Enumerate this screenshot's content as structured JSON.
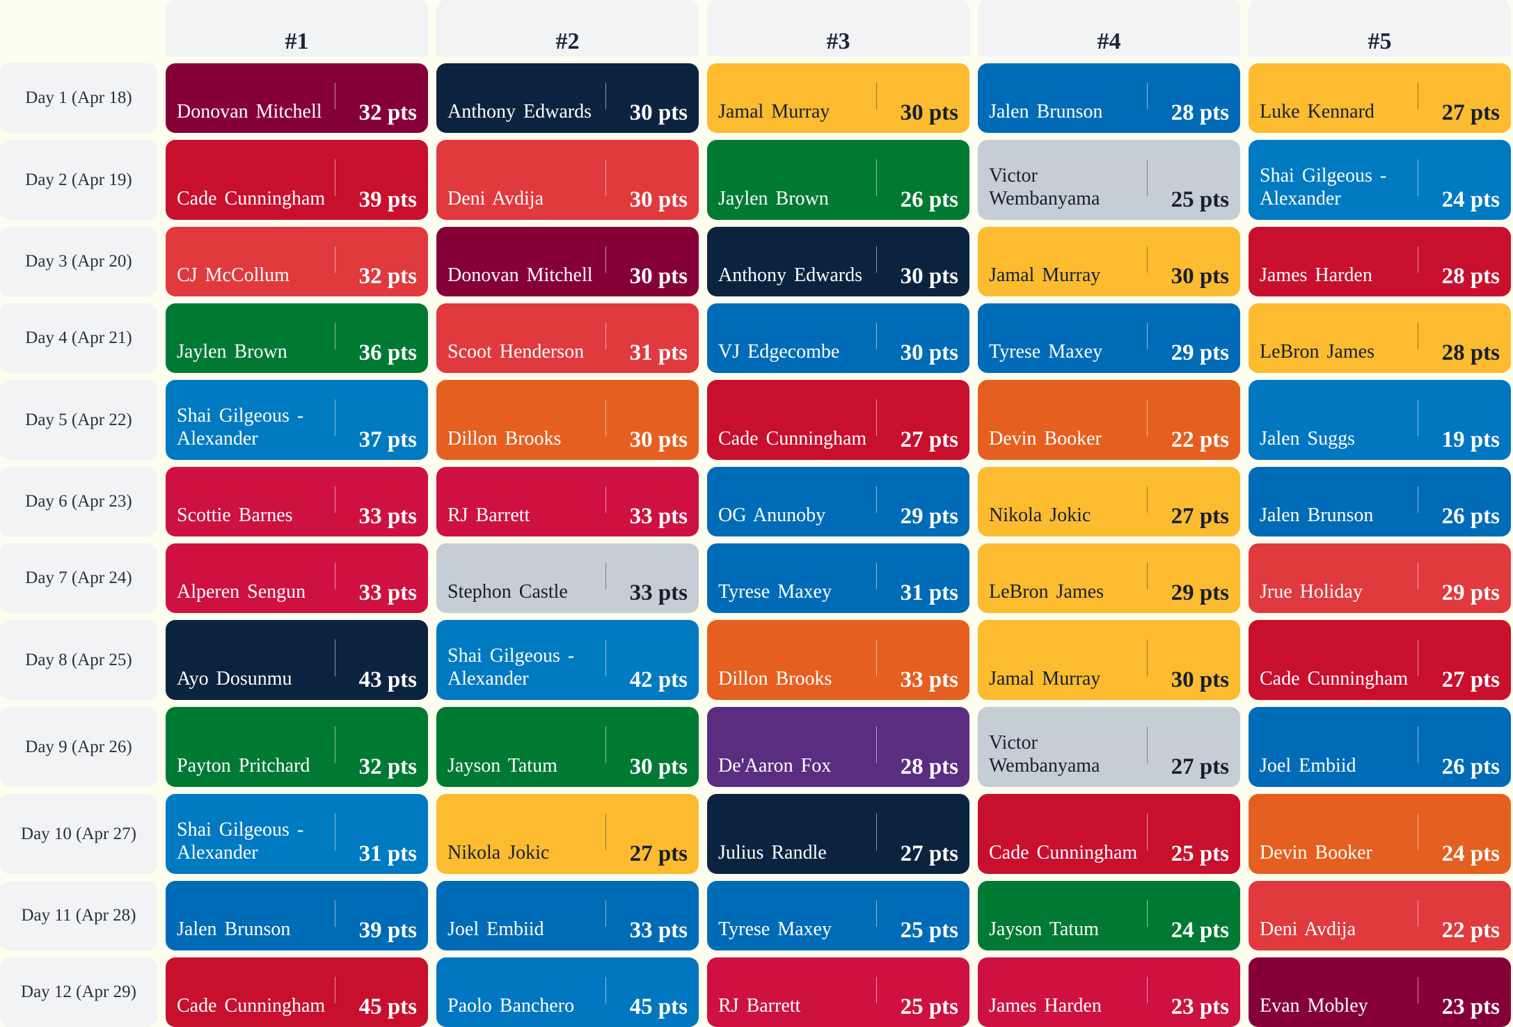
{
  "headers": [
    "#1",
    "#2",
    "#3",
    "#4",
    "#5"
  ],
  "colors": {
    "cavaliers_wine": "#860038",
    "navy": "#0c2340",
    "gold": "#fdbb30",
    "knicks_blue": "#006bb6",
    "red": "#c8102e",
    "hawks_red": "#e03a3e",
    "green": "#007a33",
    "silver": "#c4ced4",
    "thunder_blue": "#007ac1",
    "orange": "#e56020",
    "purple": "#5a2d81"
  },
  "rows": [
    {
      "day": "Day 1 (Apr 18)",
      "picks": [
        {
          "name": "Donovan Mitchell",
          "pts": "32 pts",
          "color": "#860038",
          "text": "light"
        },
        {
          "name": "Anthony Edwards",
          "pts": "30 pts",
          "color": "#0c2340",
          "text": "light"
        },
        {
          "name": "Jamal Murray",
          "pts": "30 pts",
          "color": "#fdbb30",
          "text": "dark"
        },
        {
          "name": "Jalen Brunson",
          "pts": "28 pts",
          "color": "#006bb6",
          "text": "light"
        },
        {
          "name": "Luke Kennard",
          "pts": "27 pts",
          "color": "#fdbb30",
          "text": "dark"
        }
      ]
    },
    {
      "day": "Day 2 (Apr 19)",
      "picks": [
        {
          "name": "Cade Cunningham",
          "pts": "39 pts",
          "color": "#c8102e",
          "text": "light"
        },
        {
          "name": "Deni Avdija",
          "pts": "30 pts",
          "color": "#e03a3e",
          "text": "light"
        },
        {
          "name": "Jaylen Brown",
          "pts": "26 pts",
          "color": "#007a33",
          "text": "light"
        },
        {
          "name": "Victor Wembanyama",
          "pts": "25 pts",
          "color": "#c4ced4",
          "text": "dark"
        },
        {
          "name": "Shai Gilgeous - Alexander",
          "pts": "24 pts",
          "color": "#007ac1",
          "text": "light"
        }
      ]
    },
    {
      "day": "Day 3 (Apr 20)",
      "picks": [
        {
          "name": "CJ McCollum",
          "pts": "32 pts",
          "color": "#e03a3e",
          "text": "light"
        },
        {
          "name": "Donovan Mitchell",
          "pts": "30 pts",
          "color": "#860038",
          "text": "light"
        },
        {
          "name": "Anthony Edwards",
          "pts": "30 pts",
          "color": "#0c2340",
          "text": "light"
        },
        {
          "name": "Jamal Murray",
          "pts": "30 pts",
          "color": "#fdbb30",
          "text": "dark"
        },
        {
          "name": "James Harden",
          "pts": "28 pts",
          "color": "#c8102e",
          "text": "light"
        }
      ]
    },
    {
      "day": "Day 4 (Apr 21)",
      "picks": [
        {
          "name": "Jaylen Brown",
          "pts": "36 pts",
          "color": "#007a33",
          "text": "light"
        },
        {
          "name": "Scoot Henderson",
          "pts": "31 pts",
          "color": "#e03a3e",
          "text": "light"
        },
        {
          "name": "VJ Edgecombe",
          "pts": "30 pts",
          "color": "#006bb6",
          "text": "light"
        },
        {
          "name": "Tyrese Maxey",
          "pts": "29 pts",
          "color": "#006bb6",
          "text": "light"
        },
        {
          "name": "LeBron James",
          "pts": "28 pts",
          "color": "#fdbb30",
          "text": "dark"
        }
      ]
    },
    {
      "day": "Day 5 (Apr 22)",
      "picks": [
        {
          "name": "Shai Gilgeous - Alexander",
          "pts": "37 pts",
          "color": "#007ac1",
          "text": "light"
        },
        {
          "name": "Dillon Brooks",
          "pts": "30 pts",
          "color": "#e56020",
          "text": "light"
        },
        {
          "name": "Cade Cunningham",
          "pts": "27 pts",
          "color": "#c8102e",
          "text": "light"
        },
        {
          "name": "Devin Booker",
          "pts": "22 pts",
          "color": "#e56020",
          "text": "light"
        },
        {
          "name": "Jalen Suggs",
          "pts": "19 pts",
          "color": "#0077c0",
          "text": "light"
        }
      ]
    },
    {
      "day": "Day 6 (Apr 23)",
      "picks": [
        {
          "name": "Scottie Barnes",
          "pts": "33 pts",
          "color": "#ce1141",
          "text": "light"
        },
        {
          "name": "RJ Barrett",
          "pts": "33 pts",
          "color": "#ce1141",
          "text": "light"
        },
        {
          "name": "OG Anunoby",
          "pts": "29 pts",
          "color": "#006bb6",
          "text": "light"
        },
        {
          "name": "Nikola Jokic",
          "pts": "27 pts",
          "color": "#fdbb30",
          "text": "dark"
        },
        {
          "name": "Jalen Brunson",
          "pts": "26 pts",
          "color": "#006bb6",
          "text": "light"
        }
      ]
    },
    {
      "day": "Day 7 (Apr 24)",
      "picks": [
        {
          "name": "Alperen Sengun",
          "pts": "33 pts",
          "color": "#ce1141",
          "text": "light"
        },
        {
          "name": "Stephon Castle",
          "pts": "33 pts",
          "color": "#c4ced4",
          "text": "dark"
        },
        {
          "name": "Tyrese Maxey",
          "pts": "31 pts",
          "color": "#006bb6",
          "text": "light"
        },
        {
          "name": "LeBron James",
          "pts": "29 pts",
          "color": "#fdbb30",
          "text": "dark"
        },
        {
          "name": "Jrue Holiday",
          "pts": "29 pts",
          "color": "#e03a3e",
          "text": "light"
        }
      ]
    },
    {
      "day": "Day 8 (Apr 25)",
      "picks": [
        {
          "name": "Ayo Dosunmu",
          "pts": "43 pts",
          "color": "#0c2340",
          "text": "light"
        },
        {
          "name": "Shai Gilgeous - Alexander",
          "pts": "42 pts",
          "color": "#007ac1",
          "text": "light"
        },
        {
          "name": "Dillon Brooks",
          "pts": "33 pts",
          "color": "#e56020",
          "text": "light"
        },
        {
          "name": "Jamal Murray",
          "pts": "30 pts",
          "color": "#fdbb30",
          "text": "dark"
        },
        {
          "name": "Cade Cunningham",
          "pts": "27 pts",
          "color": "#c8102e",
          "text": "light"
        }
      ]
    },
    {
      "day": "Day 9 (Apr 26)",
      "picks": [
        {
          "name": "Payton Pritchard",
          "pts": "32 pts",
          "color": "#007a33",
          "text": "light"
        },
        {
          "name": "Jayson Tatum",
          "pts": "30 pts",
          "color": "#007a33",
          "text": "light"
        },
        {
          "name": "De'Aaron Fox",
          "pts": "28 pts",
          "color": "#5a2d81",
          "text": "light"
        },
        {
          "name": "Victor Wembanyama",
          "pts": "27 pts",
          "color": "#c4ced4",
          "text": "dark"
        },
        {
          "name": "Joel Embiid",
          "pts": "26 pts",
          "color": "#006bb6",
          "text": "light"
        }
      ]
    },
    {
      "day": "Day 10 (Apr 27)",
      "picks": [
        {
          "name": "Shai Gilgeous - Alexander",
          "pts": "31 pts",
          "color": "#007ac1",
          "text": "light"
        },
        {
          "name": "Nikola Jokic",
          "pts": "27 pts",
          "color": "#fdbb30",
          "text": "dark"
        },
        {
          "name": "Julius Randle",
          "pts": "27 pts",
          "color": "#0c2340",
          "text": "light"
        },
        {
          "name": "Cade Cunningham",
          "pts": "25 pts",
          "color": "#c8102e",
          "text": "light"
        },
        {
          "name": "Devin Booker",
          "pts": "24 pts",
          "color": "#e56020",
          "text": "light"
        }
      ]
    },
    {
      "day": "Day 11 (Apr 28)",
      "picks": [
        {
          "name": "Jalen Brunson",
          "pts": "39 pts",
          "color": "#006bb6",
          "text": "light"
        },
        {
          "name": "Joel Embiid",
          "pts": "33 pts",
          "color": "#006bb6",
          "text": "light"
        },
        {
          "name": "Tyrese Maxey",
          "pts": "25 pts",
          "color": "#006bb6",
          "text": "light"
        },
        {
          "name": "Jayson Tatum",
          "pts": "24 pts",
          "color": "#007a33",
          "text": "light"
        },
        {
          "name": "Deni Avdija",
          "pts": "22 pts",
          "color": "#e03a3e",
          "text": "light"
        }
      ]
    },
    {
      "day": "Day 12 (Apr 29)",
      "picks": [
        {
          "name": "Cade Cunningham",
          "pts": "45 pts",
          "color": "#c8102e",
          "text": "light"
        },
        {
          "name": "Paolo Banchero",
          "pts": "45 pts",
          "color": "#0077c0",
          "text": "light"
        },
        {
          "name": "RJ Barrett",
          "pts": "25 pts",
          "color": "#ce1141",
          "text": "light"
        },
        {
          "name": "James Harden",
          "pts": "23 pts",
          "color": "#ce1141",
          "text": "light"
        },
        {
          "name": "Evan Mobley",
          "pts": "23 pts",
          "color": "#860038",
          "text": "light"
        }
      ]
    }
  ]
}
